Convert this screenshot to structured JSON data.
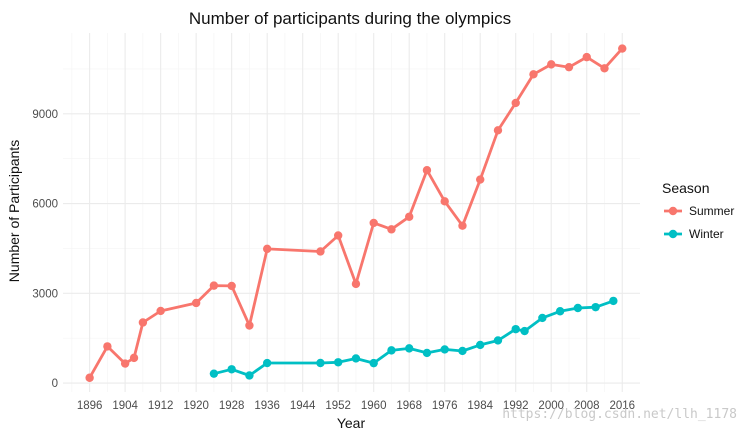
{
  "chart_data": {
    "type": "line",
    "title": "Number of participants during the olympics",
    "xlabel": "Year",
    "ylabel": "Number of Participants",
    "xlim": [
      1890,
      2020
    ],
    "ylim": [
      -300,
      11700
    ],
    "x_ticks": [
      1896,
      1904,
      1912,
      1920,
      1928,
      1936,
      1944,
      1952,
      1960,
      1968,
      1976,
      1984,
      1992,
      2000,
      2008,
      2016
    ],
    "y_ticks": [
      0,
      3000,
      6000,
      9000
    ],
    "grid": true,
    "legend": {
      "title": "Season",
      "position": "right"
    },
    "series": [
      {
        "name": "Summer",
        "color": "#F8766D",
        "x": [
          1896,
          1900,
          1904,
          1906,
          1908,
          1912,
          1920,
          1924,
          1928,
          1932,
          1936,
          1948,
          1952,
          1956,
          1960,
          1964,
          1968,
          1972,
          1976,
          1980,
          1984,
          1988,
          1992,
          1996,
          2000,
          2004,
          2008,
          2012,
          2016
        ],
        "y": [
          176,
          1224,
          650,
          841,
          2024,
          2409,
          2676,
          3256,
          3246,
          1922,
          4484,
          4397,
          4932,
          3314,
          5352,
          5137,
          5557,
          7113,
          6073,
          5259,
          6800,
          8448,
          9362,
          10320,
          10651,
          10558,
          10894,
          10520,
          11179
        ]
      },
      {
        "name": "Winter",
        "color": "#00BFC4",
        "x": [
          1924,
          1928,
          1932,
          1936,
          1948,
          1952,
          1956,
          1960,
          1964,
          1968,
          1972,
          1976,
          1980,
          1984,
          1988,
          1992,
          1994,
          1998,
          2002,
          2006,
          2010,
          2014
        ],
        "y": [
          313,
          460,
          252,
          668,
          669,
          694,
          821,
          665,
          1091,
          1158,
          1006,
          1123,
          1072,
          1274,
          1423,
          1801,
          1737,
          2176,
          2399,
          2508,
          2536,
          2745
        ]
      }
    ]
  },
  "watermark": "https://blog.csdn.net/llh_1178"
}
